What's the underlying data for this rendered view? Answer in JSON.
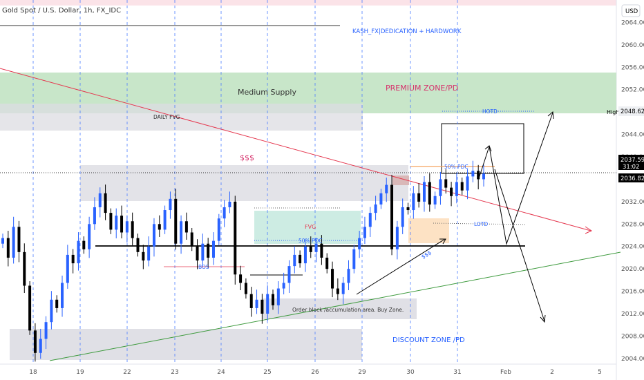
{
  "header": {
    "symbol_title": "Gold Spot / U.S. Dollar, 1h, FX_IDC",
    "currency_button": "USD"
  },
  "chart_data": {
    "type": "candlestick",
    "title": "Gold Spot / U.S. Dollar, 1h, FX_IDC",
    "x_tick_labels": [
      "18",
      "19",
      "22",
      "23",
      "24",
      "25",
      "26",
      "29",
      "30",
      "31",
      "Feb",
      "2",
      "5"
    ],
    "y_tick_labels": [
      "2064.00",
      "2060.00",
      "2056.00",
      "2052.00",
      "2048.00",
      "2044.00",
      "2040.00",
      "2036.00",
      "2032.00",
      "2028.00",
      "2024.00",
      "2020.00",
      "2016.00",
      "2012.00",
      "2008.00",
      "2004.00"
    ],
    "ylim": [
      2003,
      2068
    ],
    "grid": false,
    "price_labels": {
      "high_label": "High",
      "high_value": "2048.62",
      "last_price": "2037.59",
      "countdown": "31:02",
      "prev_price": "2036.82"
    },
    "series": [
      {
        "values": [
          2025.5,
          2022.0,
          2027.5,
          2023.0,
          2017.0,
          2009.0,
          2005.0,
          2007.5,
          2010.5,
          2014.5,
          2013.0,
          2017.5,
          2022.5,
          2021.0,
          2025.0,
          2023.5,
          2028.0,
          2031.0,
          2033.5,
          2030.0,
          2027.0,
          2029.5,
          2026.5,
          2028.5,
          2025.5,
          2023.0,
          2021.5,
          2024.0,
          2028.0,
          2027.0,
          2030.5,
          2032.5,
          2024.5,
          2028.5,
          2026.5,
          2024.0,
          2021.5,
          2024.5,
          2022.0,
          2025.0,
          2029.0,
          2031.0,
          2032.0,
          2019.0,
          2017.5,
          2015.5,
          2013.0,
          2014.5,
          2012.0,
          2015.5,
          2013.5,
          2016.5,
          2017.5,
          2020.5,
          2022.5,
          2021.0,
          2024.0,
          2023.0,
          2024.5,
          2022.0,
          2020.0,
          2016.5,
          2015.5,
          2017.5,
          2020.0,
          2023.5,
          2025.5,
          2027.5,
          2030.0,
          2031.5,
          2033.5,
          2035.0,
          2023.5,
          2027.5,
          2031.0,
          2030.5,
          2033.5,
          2032.0,
          2035.5,
          2031.5,
          2033.0,
          2036.0,
          2034.5,
          2033.0,
          2035.5,
          2034.0,
          2036.5,
          2037.5,
          2036.0,
          2037.0
        ]
      }
    ],
    "annotations": {
      "ref_title": "KASH_FX|DEDICATION + HARDWORK",
      "medium_supply": "Medium Supply",
      "premium_zone": "PREMIUM ZONE/PD",
      "daily_fvg": "DAILY FVG",
      "dollars": "$$$",
      "dollars_trend": "$$$",
      "fvg": "FVG",
      "pdc_50_a": "50% PDC",
      "pdc_50_b": "50% PDC",
      "bos": "BOS",
      "hotd": "HOTD",
      "lotd": "LOTD",
      "order_block": "Order block /accumulation area. Buy Zone.",
      "discount_zone": "DISCOUNT ZONE /PD"
    },
    "colors": {
      "up": "#2962ff",
      "down": "#000000",
      "supply_zone": "#c8e6c9",
      "fvg_zone": "#cdece3",
      "orange_zone": "#fde2c4",
      "grey_zone": "#e0e0e6",
      "red_trendline": "#e5384f",
      "green_trendline": "#3d9a3d",
      "blue_text": "#2962ff",
      "pink_text": "#d6306b"
    }
  }
}
